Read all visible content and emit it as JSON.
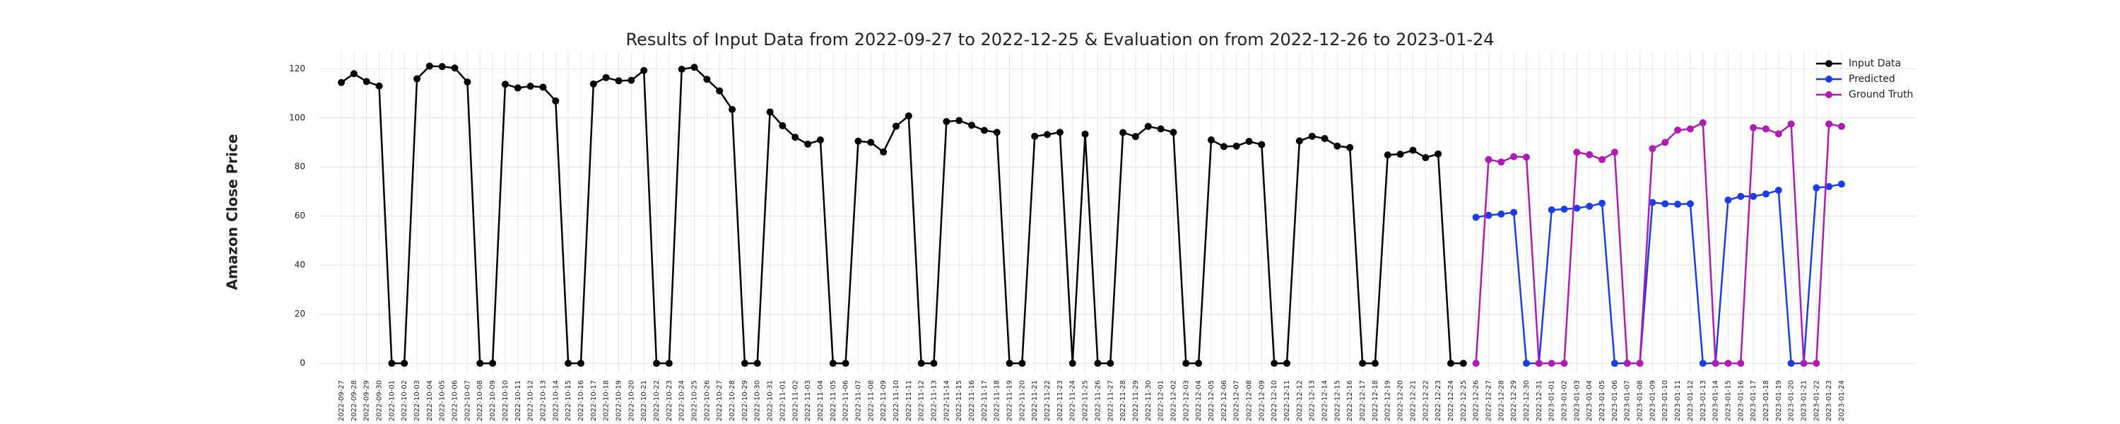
{
  "chart_data": {
    "type": "line",
    "title": "Results of Input Data from 2022-09-27 to 2022-12-25 & Evaluation on from 2022-12-26 to 2023-01-24",
    "ylabel": "Amazon Close Price",
    "x": [
      "2022-09-27",
      "2022-09-28",
      "2022-09-29",
      "2022-09-30",
      "2022-10-01",
      "2022-10-02",
      "2022-10-03",
      "2022-10-04",
      "2022-10-05",
      "2022-10-06",
      "2022-10-07",
      "2022-10-08",
      "2022-10-09",
      "2022-10-10",
      "2022-10-11",
      "2022-10-12",
      "2022-10-13",
      "2022-10-14",
      "2022-10-15",
      "2022-10-16",
      "2022-10-17",
      "2022-10-18",
      "2022-10-19",
      "2022-10-20",
      "2022-10-21",
      "2022-10-22",
      "2022-10-23",
      "2022-10-24",
      "2022-10-25",
      "2022-10-26",
      "2022-10-27",
      "2022-10-28",
      "2022-10-29",
      "2022-10-30",
      "2022-10-31",
      "2022-11-01",
      "2022-11-02",
      "2022-11-03",
      "2022-11-04",
      "2022-11-05",
      "2022-11-06",
      "2022-11-07",
      "2022-11-08",
      "2022-11-09",
      "2022-11-10",
      "2022-11-11",
      "2022-11-12",
      "2022-11-13",
      "2022-11-14",
      "2022-11-15",
      "2022-11-16",
      "2022-11-17",
      "2022-11-18",
      "2022-11-19",
      "2022-11-20",
      "2022-11-21",
      "2022-11-22",
      "2022-11-23",
      "2022-11-24",
      "2022-11-25",
      "2022-11-26",
      "2022-11-27",
      "2022-11-28",
      "2022-11-29",
      "2022-11-30",
      "2022-12-01",
      "2022-12-02",
      "2022-12-03",
      "2022-12-04",
      "2022-12-05",
      "2022-12-06",
      "2022-12-07",
      "2022-12-08",
      "2022-12-09",
      "2022-12-10",
      "2022-12-11",
      "2022-12-12",
      "2022-12-13",
      "2022-12-14",
      "2022-12-15",
      "2022-12-16",
      "2022-12-17",
      "2022-12-18",
      "2022-12-19",
      "2022-12-20",
      "2022-12-21",
      "2022-12-22",
      "2022-12-23",
      "2022-12-24",
      "2022-12-25",
      "2022-12-26",
      "2022-12-27",
      "2022-12-28",
      "2022-12-29",
      "2022-12-30",
      "2022-12-31",
      "2023-01-01",
      "2023-01-02",
      "2023-01-03",
      "2023-01-04",
      "2023-01-05",
      "2023-01-06",
      "2023-01-07",
      "2023-01-08",
      "2023-01-09",
      "2023-01-10",
      "2023-01-11",
      "2023-01-12",
      "2023-01-13",
      "2023-01-14",
      "2023-01-15",
      "2023-01-16",
      "2023-01-17",
      "2023-01-18",
      "2023-01-19",
      "2023-01-20",
      "2023-01-21",
      "2023-01-22",
      "2023-01-23",
      "2023-01-24"
    ],
    "series": [
      {
        "name": "Input Data",
        "color": "#000000",
        "values": [
          114.4,
          118.0,
          114.8,
          113.0,
          0,
          0,
          115.9,
          121.1,
          120.9,
          120.3,
          114.6,
          0,
          0,
          113.7,
          112.2,
          112.9,
          112.5,
          106.9,
          0,
          0,
          113.8,
          116.4,
          115.1,
          115.3,
          119.3,
          0,
          0,
          119.8,
          120.6,
          115.7,
          111.0,
          103.4,
          0,
          0,
          102.4,
          96.8,
          92.1,
          89.3,
          91.0,
          0,
          0,
          90.5,
          90.0,
          86.1,
          96.6,
          100.8,
          0,
          0,
          98.5,
          98.9,
          97.0,
          94.9,
          94.1,
          0,
          0,
          92.5,
          93.2,
          94.1,
          0,
          93.4,
          0,
          0,
          94.0,
          92.4,
          96.5,
          95.5,
          94.1,
          0,
          0,
          91.0,
          88.3,
          88.5,
          90.4,
          89.1,
          0,
          0,
          90.6,
          92.5,
          91.6,
          88.5,
          87.9,
          0,
          0,
          84.9,
          85.2,
          86.8,
          83.8,
          85.3,
          0,
          0,
          null,
          null,
          null,
          null,
          null,
          null,
          null,
          null,
          null,
          null,
          null,
          null,
          null,
          null,
          null,
          null,
          null,
          null,
          null,
          null,
          null,
          null,
          null,
          null,
          null,
          null,
          null,
          null,
          null,
          null
        ]
      },
      {
        "name": "Predicted",
        "color": "#1a3de6",
        "values": [
          null,
          null,
          null,
          null,
          null,
          null,
          null,
          null,
          null,
          null,
          null,
          null,
          null,
          null,
          null,
          null,
          null,
          null,
          null,
          null,
          null,
          null,
          null,
          null,
          null,
          null,
          null,
          null,
          null,
          null,
          null,
          null,
          null,
          null,
          null,
          null,
          null,
          null,
          null,
          null,
          null,
          null,
          null,
          null,
          null,
          null,
          null,
          null,
          null,
          null,
          null,
          null,
          null,
          null,
          null,
          null,
          null,
          null,
          null,
          null,
          null,
          null,
          null,
          null,
          null,
          null,
          null,
          null,
          null,
          null,
          null,
          null,
          null,
          null,
          null,
          null,
          null,
          null,
          null,
          null,
          null,
          null,
          null,
          null,
          null,
          null,
          null,
          null,
          null,
          null,
          59.5,
          60.3,
          60.8,
          61.5,
          0,
          0,
          62.5,
          62.8,
          63.2,
          64.0,
          65.2,
          0,
          0,
          0,
          65.5,
          65.0,
          64.8,
          65.0,
          0,
          0,
          66.5,
          68.0,
          68.0,
          69.0,
          70.5,
          0,
          0,
          71.5,
          72.0,
          73.0
        ]
      },
      {
        "name": "Ground Truth",
        "color": "#b01bb5",
        "values": [
          null,
          null,
          null,
          null,
          null,
          null,
          null,
          null,
          null,
          null,
          null,
          null,
          null,
          null,
          null,
          null,
          null,
          null,
          null,
          null,
          null,
          null,
          null,
          null,
          null,
          null,
          null,
          null,
          null,
          null,
          null,
          null,
          null,
          null,
          null,
          null,
          null,
          null,
          null,
          null,
          null,
          null,
          null,
          null,
          null,
          null,
          null,
          null,
          null,
          null,
          null,
          null,
          null,
          null,
          null,
          null,
          null,
          null,
          null,
          null,
          null,
          null,
          null,
          null,
          null,
          null,
          null,
          null,
          null,
          null,
          null,
          null,
          null,
          null,
          null,
          null,
          null,
          null,
          null,
          null,
          null,
          null,
          null,
          null,
          null,
          null,
          null,
          null,
          null,
          null,
          0,
          83.0,
          82.0,
          84.2,
          84.0,
          0,
          0,
          0,
          86.0,
          85.0,
          83.0,
          86.0,
          0,
          0,
          87.5,
          90.0,
          95.0,
          95.5,
          98.0,
          0,
          0,
          0,
          96.0,
          95.5,
          93.5,
          97.5,
          0,
          0,
          97.5,
          96.5
        ]
      }
    ],
    "ylim": [
      -4,
      127
    ],
    "yticks": [
      0,
      20,
      40,
      60,
      80,
      100,
      120
    ],
    "grid": true,
    "legend": "upper right"
  }
}
